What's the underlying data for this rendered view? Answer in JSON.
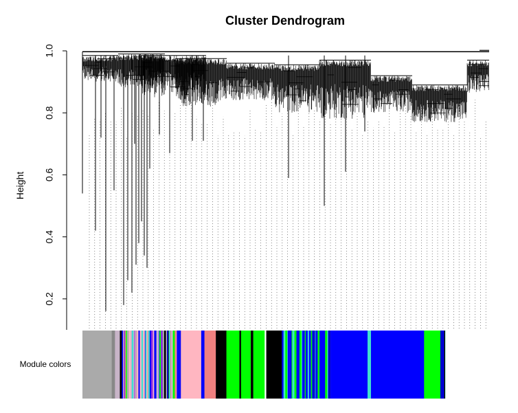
{
  "chart_data": {
    "type": "dendrogram",
    "title": "Cluster Dendrogram",
    "ylabel": "Height",
    "xlabel": "",
    "ylim": [
      0.1,
      1.0
    ],
    "yticks": [
      {
        "value": 0.2,
        "label": "0.2"
      },
      {
        "value": 0.4,
        "label": "0.4"
      },
      {
        "value": 0.6,
        "label": "0.6"
      },
      {
        "value": 0.8,
        "label": "0.8"
      },
      {
        "value": 1.0,
        "label": "1.0"
      }
    ],
    "root_height": 0.995,
    "module_colors_label": "Module colors",
    "module_colors": [
      {
        "color": "#aaaaaa",
        "share": 0.072
      },
      {
        "color": "#888888",
        "share": 0.008
      },
      {
        "color": "#c8b4c8",
        "share": 0.012
      },
      {
        "color": "mixed",
        "share": 0.14
      },
      {
        "color": "#0000ff",
        "share": 0.01
      },
      {
        "color": "#ffb6c1",
        "share": 0.05
      },
      {
        "color": "#0000ff",
        "share": 0.008
      },
      {
        "color": "#f08080",
        "share": 0.028
      },
      {
        "color": "#000000",
        "share": 0.026
      },
      {
        "color": "#00ff00",
        "share": 0.032
      },
      {
        "color": "#000000",
        "share": 0.004
      },
      {
        "color": "#00ff00",
        "share": 0.024
      },
      {
        "color": "#000000",
        "share": 0.006
      },
      {
        "color": "#00ff00",
        "share": 0.028
      },
      {
        "color": "#ffffff",
        "share": 0.004
      },
      {
        "color": "#000000",
        "share": 0.038
      },
      {
        "color": "mixed-blue",
        "share": 0.12
      },
      {
        "color": "#0000ff",
        "share": 0.23
      },
      {
        "color": "#00ff00",
        "share": 0.04
      },
      {
        "color": "mixed-blue",
        "share": 0.012
      }
    ]
  }
}
